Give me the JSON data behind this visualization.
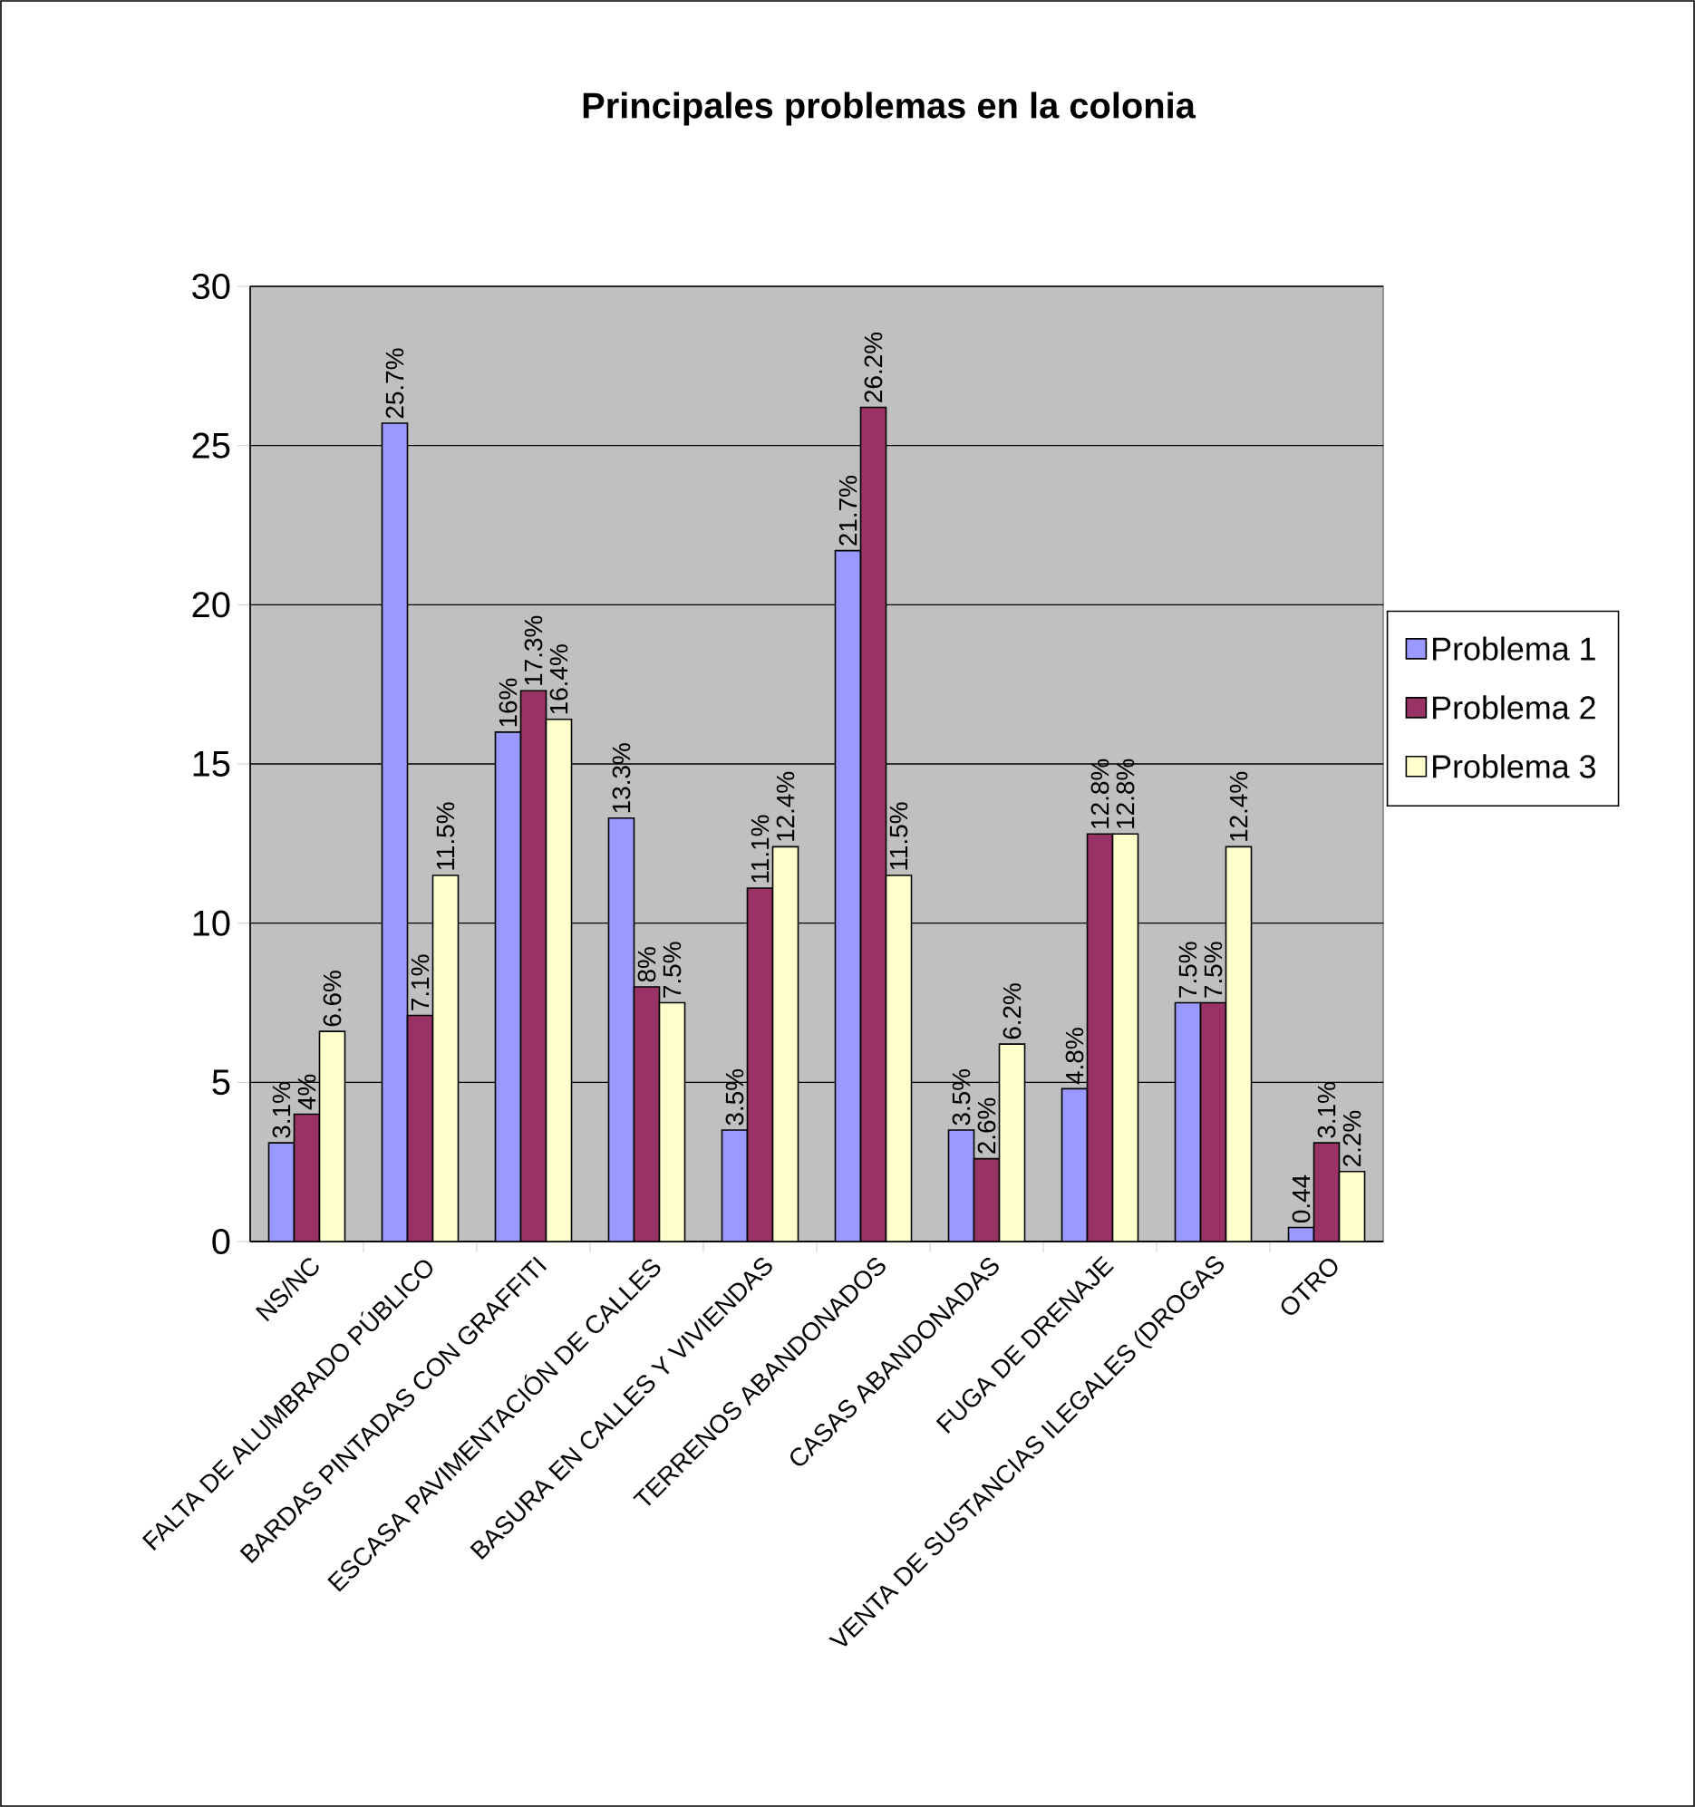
{
  "chart_data": {
    "type": "bar",
    "title": "Principales problemas en la colonia",
    "categories": [
      "NS/NC",
      "FALTA DE ALUMBRADO PÚBLICO",
      "BARDAS PINTADAS CON GRAFFITI",
      "ESCASA PAVIMENTACIÓN DE CALLES",
      "BASURA EN CALLES Y VIVIENDAS",
      "TERRENOS ABANDONADOS",
      "CASAS ABANDONADAS",
      "FUGA DE DRENAJE",
      "VENTA DE SUSTANCIAS ILEGALES (DROGAS",
      "OTRO"
    ],
    "series": [
      {
        "name": "Problema 1",
        "color": "#9999ff",
        "values": [
          3.1,
          25.7,
          16,
          13.3,
          3.5,
          21.7,
          3.5,
          4.8,
          7.5,
          0.44
        ],
        "value_labels": [
          "3.1%",
          "25.7%",
          "16%",
          "13.3%",
          "3.5%",
          "21.7%",
          "3.5%",
          "4.8%",
          "7.5%",
          "0.44"
        ]
      },
      {
        "name": "Problema 2",
        "color": "#993366",
        "values": [
          4,
          7.1,
          17.3,
          8,
          11.1,
          26.2,
          2.6,
          12.8,
          7.5,
          3.1
        ],
        "value_labels": [
          "4%",
          "7.1%",
          "17.3%",
          "8%",
          "11.1%",
          "26.2%",
          "2.6%",
          "12.8%",
          "7.5%",
          "3.1%"
        ]
      },
      {
        "name": "Problema 3",
        "color": "#ffffcc",
        "values": [
          6.6,
          11.5,
          16.4,
          7.5,
          12.4,
          11.5,
          6.2,
          12.8,
          12.4,
          2.2
        ],
        "value_labels": [
          "6.6%",
          "11.5%",
          "16.4%",
          "7.5%",
          "12.4%",
          "11.5%",
          "6.2%",
          "12.8%",
          "12.4%",
          "2.2%"
        ]
      }
    ],
    "ylim": [
      0,
      30
    ],
    "yticks": [
      0,
      5,
      10,
      15,
      20,
      25,
      30
    ],
    "grid": "y",
    "legend": "right"
  }
}
